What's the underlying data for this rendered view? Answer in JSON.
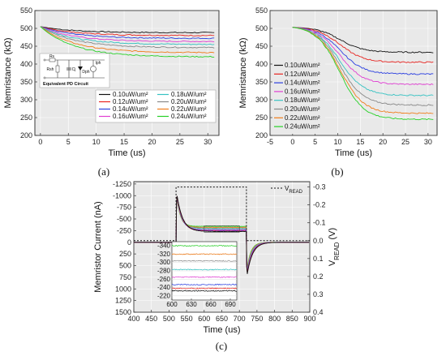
{
  "chart_data": [
    {
      "id": "a",
      "type": "line",
      "caption": "(a)",
      "xlabel": "Time (us)",
      "ylabel": "Memristance (kΩ)",
      "xlim": [
        -1,
        32
      ],
      "ylim": [
        200,
        550
      ],
      "xticks": [
        "0",
        "5",
        "10",
        "15",
        "20",
        "25",
        "30"
      ],
      "yticks": [
        "200",
        "250",
        "300",
        "350",
        "400",
        "450",
        "500",
        "550"
      ],
      "grid": true,
      "legend_placement": "bottom-right",
      "inset": {
        "title": "Equivalent PD Circuit",
        "labels": [
          "Rs",
          "Rsh",
          "Cj",
          "Dph",
          "Iph"
        ]
      },
      "series": [
        {
          "name": "0.10uW/um²",
          "color": "#111111",
          "y_start": 505,
          "y_final": 488,
          "tau": 6
        },
        {
          "name": "0.12uW/um²",
          "color": "#e8231f",
          "y_start": 505,
          "y_final": 480,
          "tau": 6
        },
        {
          "name": "0.14uW/um²",
          "color": "#2b3fe0",
          "y_start": 505,
          "y_final": 472,
          "tau": 6
        },
        {
          "name": "0.16uW/um²",
          "color": "#e03fd2",
          "y_start": 505,
          "y_final": 463,
          "tau": 6
        },
        {
          "name": "0.18uW/um²",
          "color": "#36c2c2",
          "y_start": 505,
          "y_final": 455,
          "tau": 6
        },
        {
          "name": "0.20uW/um²",
          "color": "#888888",
          "y_start": 505,
          "y_final": 446,
          "tau": 6
        },
        {
          "name": "0.22uW/um²",
          "color": "#f07d1a",
          "y_start": 505,
          "y_final": 432,
          "tau": 6
        },
        {
          "name": "0.24uW/um²",
          "color": "#27d127",
          "y_start": 505,
          "y_final": 420,
          "tau": 6
        }
      ]
    },
    {
      "id": "b",
      "type": "line",
      "caption": "(b)",
      "xlabel": "Time (us)",
      "ylabel": "Memristance (kΩ)",
      "xlim": [
        -5,
        32
      ],
      "ylim": [
        200,
        550
      ],
      "xticks": [
        "-5",
        "0",
        "5",
        "10",
        "15",
        "20",
        "25",
        "30"
      ],
      "yticks": [
        "200",
        "250",
        "300",
        "350",
        "400",
        "450",
        "500",
        "550"
      ],
      "grid": true,
      "legend_placement": "left",
      "series": [
        {
          "name": "0.10uW/um²",
          "color": "#111111",
          "y_start": 503,
          "y_final": 433
        },
        {
          "name": "0.12uW/um²",
          "color": "#e8231f",
          "y_start": 503,
          "y_final": 405
        },
        {
          "name": "0.14uW/um²",
          "color": "#2b3fe0",
          "y_start": 503,
          "y_final": 372
        },
        {
          "name": "0.16uW/um²",
          "color": "#e03fd2",
          "y_start": 503,
          "y_final": 343
        },
        {
          "name": "0.18uW/um²",
          "color": "#36c2c2",
          "y_start": 503,
          "y_final": 312
        },
        {
          "name": "0.20uW/um²",
          "color": "#888888",
          "y_start": 503,
          "y_final": 285
        },
        {
          "name": "0.22uW/um²",
          "color": "#f07d1a",
          "y_start": 503,
          "y_final": 262
        },
        {
          "name": "0.24uW/um²",
          "color": "#27d127",
          "y_start": 503,
          "y_final": 245
        }
      ]
    },
    {
      "id": "c",
      "type": "line",
      "caption": "(c)",
      "xlabel": "Time (us)",
      "ylabel": "Memristor Current (nA)",
      "y2label_main": "V",
      "y2label_sub": "READ",
      "y2label_unit": "(V)",
      "xlim": [
        400,
        900
      ],
      "ylim": [
        1500,
        -1300
      ],
      "y2lim": [
        0.4,
        -0.33
      ],
      "xticks": [
        "400",
        "450",
        "500",
        "550",
        "600",
        "650",
        "700",
        "750",
        "800",
        "850",
        "900"
      ],
      "yticks": [
        "-1250",
        "-1000",
        "-750",
        "-500",
        "-250",
        "0",
        "250",
        "500",
        "750",
        "1000",
        "1250",
        "1500"
      ],
      "y2ticks": [
        "-0.3",
        "-0.2",
        "-0.1",
        "0.0",
        "0.1",
        "0.2",
        "0.3",
        "0.4"
      ],
      "legend": [
        {
          "name": "V",
          "sub": "READ",
          "style": "dotted"
        }
      ],
      "vread": {
        "t_on": 520,
        "t_off": 720,
        "level": -0.3
      },
      "pulse": {
        "peak": -1150,
        "plateau_min": -230,
        "plateau_max": -345,
        "neg_peak": 800
      },
      "inset": {
        "xlim": [
          600,
          700
        ],
        "ylim": [
          -350,
          -210
        ],
        "xticks": [
          "600",
          "630",
          "660",
          "690"
        ],
        "yticks": [
          "-340",
          "-320",
          "-300",
          "-280",
          "-260",
          "-240",
          "-220"
        ],
        "levels": [
          {
            "color": "#27d127",
            "value": -340
          },
          {
            "color": "#f07d1a",
            "value": -320
          },
          {
            "color": "#888888",
            "value": -304
          },
          {
            "color": "#36c2c2",
            "value": -283
          },
          {
            "color": "#e03fd2",
            "value": -265
          },
          {
            "color": "#2b3fe0",
            "value": -247
          },
          {
            "color": "#e8231f",
            "value": -238
          },
          {
            "color": "#111111",
            "value": -232
          }
        ]
      }
    }
  ]
}
